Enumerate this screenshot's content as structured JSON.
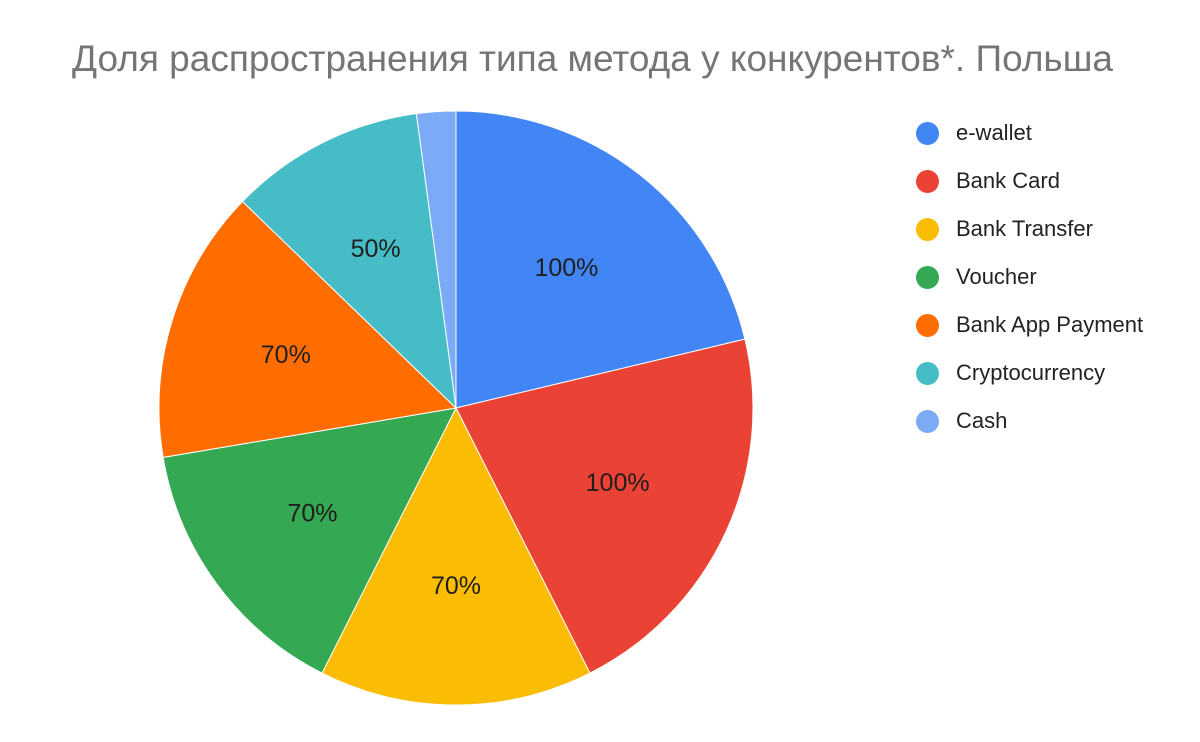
{
  "chart_data": {
    "type": "pie",
    "title": "Доля распространения типа метода у конкурентов*. Польша",
    "legend_position": "right",
    "slices": [
      {
        "name": "e-wallet",
        "value": 100,
        "label": "100%",
        "color": "#4285F4"
      },
      {
        "name": "Bank Card",
        "value": 100,
        "label": "100%",
        "color": "#EA4335"
      },
      {
        "name": "Bank Transfer",
        "value": 70,
        "label": "70%",
        "color": "#FBBC04"
      },
      {
        "name": "Voucher",
        "value": 70,
        "label": "70%",
        "color": "#34A853"
      },
      {
        "name": "Bank App Payment",
        "value": 70,
        "label": "70%",
        "color": "#FF6D01"
      },
      {
        "name": "Cryptocurrency",
        "value": 50,
        "label": "50%",
        "color": "#46BDC6"
      },
      {
        "name": "Cash",
        "value": 10,
        "label": "",
        "color": "#7BAAF7"
      }
    ]
  }
}
